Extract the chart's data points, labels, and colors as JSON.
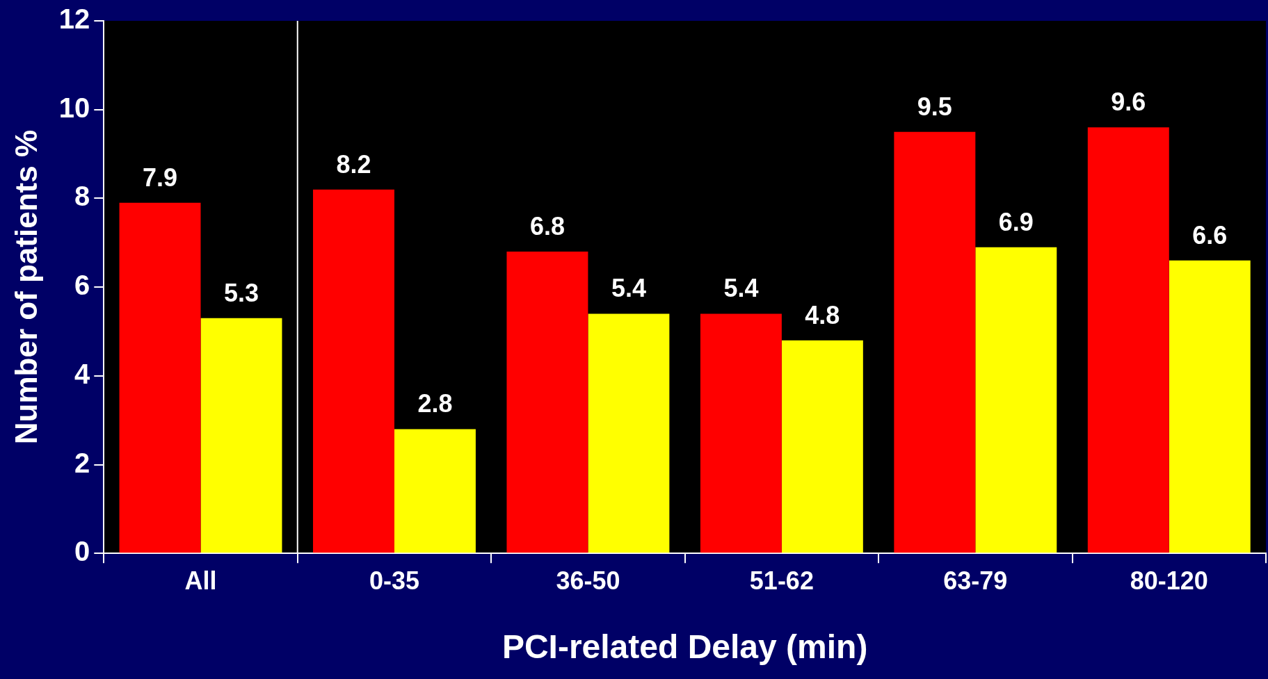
{
  "chart_data": {
    "type": "bar",
    "xlabel": "PCI-related Delay (min)",
    "ylabel": "Number of patients %",
    "categories": [
      "All",
      "0-35",
      "36-50",
      "51-62",
      "63-79",
      "80-120"
    ],
    "series": [
      {
        "color": "#ff0000",
        "values": [
          7.9,
          8.2,
          6.8,
          5.4,
          9.5,
          9.6
        ]
      },
      {
        "color": "#ffff00",
        "values": [
          5.3,
          2.8,
          5.4,
          4.8,
          6.9,
          6.6
        ]
      }
    ],
    "ylim": [
      0,
      12
    ],
    "yticks": [
      0,
      2,
      4,
      6,
      8,
      10,
      12
    ],
    "data_labels": true
  }
}
